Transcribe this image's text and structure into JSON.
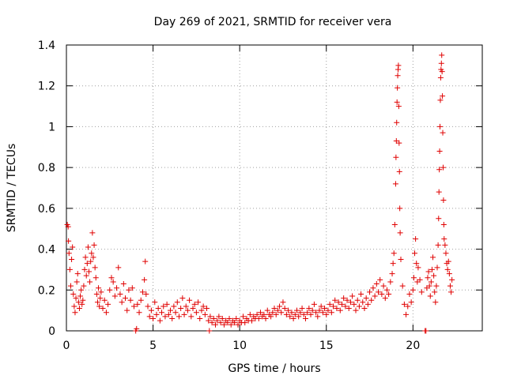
{
  "chart_data": {
    "type": "scatter",
    "title": "Day 269 of 2021, SRMTID for receiver vera",
    "xlabel": "GPS time / hours",
    "ylabel": "SRMTID / TECUs",
    "xlim": [
      0,
      24
    ],
    "ylim": [
      0,
      1.4
    ],
    "xticks": [
      0,
      5,
      10,
      15,
      20
    ],
    "xtick_labels": [
      "0",
      "5",
      "10",
      "15",
      "20"
    ],
    "yticks": [
      0,
      0.2,
      0.4,
      0.6,
      0.8,
      1.0,
      1.2,
      1.4
    ],
    "ytick_labels": [
      "0",
      "0.2",
      "0.4",
      "0.6",
      "0.8",
      "1",
      "1.2",
      "1.4"
    ],
    "grid": true,
    "marker": "+",
    "color": "#e00000",
    "series": [
      {
        "name": "SRMTID",
        "points": [
          [
            0.05,
            0.52
          ],
          [
            0.1,
            0.51
          ],
          [
            0.12,
            0.44
          ],
          [
            0.15,
            0.38
          ],
          [
            0.2,
            0.3
          ],
          [
            0.25,
            0.22
          ],
          [
            0.3,
            0.35
          ],
          [
            0.35,
            0.41
          ],
          [
            0.4,
            0.18
          ],
          [
            0.45,
            0.12
          ],
          [
            0.5,
            0.09
          ],
          [
            0.55,
            0.16
          ],
          [
            0.6,
            0.24
          ],
          [
            0.65,
            0.28
          ],
          [
            0.7,
            0.14
          ],
          [
            0.75,
            0.11
          ],
          [
            0.8,
            0.17
          ],
          [
            0.85,
            0.2
          ],
          [
            0.9,
            0.13
          ],
          [
            0.95,
            0.15
          ],
          [
            1.0,
            0.22
          ],
          [
            1.05,
            0.3
          ],
          [
            1.1,
            0.36
          ],
          [
            1.15,
            0.27
          ],
          [
            1.2,
            0.33
          ],
          [
            1.25,
            0.41
          ],
          [
            1.3,
            0.29
          ],
          [
            1.35,
            0.24
          ],
          [
            1.4,
            0.34
          ],
          [
            1.45,
            0.38
          ],
          [
            1.5,
            0.48
          ],
          [
            1.55,
            0.36
          ],
          [
            1.6,
            0.42
          ],
          [
            1.65,
            0.31
          ],
          [
            1.7,
            0.26
          ],
          [
            1.75,
            0.18
          ],
          [
            1.8,
            0.14
          ],
          [
            1.85,
            0.21
          ],
          [
            1.9,
            0.12
          ],
          [
            1.95,
            0.16
          ],
          [
            2.0,
            0.19
          ],
          [
            2.1,
            0.11
          ],
          [
            2.2,
            0.15
          ],
          [
            2.3,
            0.09
          ],
          [
            2.4,
            0.13
          ],
          [
            2.5,
            0.2
          ],
          [
            2.6,
            0.26
          ],
          [
            2.7,
            0.24
          ],
          [
            2.8,
            0.17
          ],
          [
            2.9,
            0.21
          ],
          [
            3.0,
            0.31
          ],
          [
            3.1,
            0.18
          ],
          [
            3.2,
            0.14
          ],
          [
            3.3,
            0.23
          ],
          [
            3.4,
            0.16
          ],
          [
            3.5,
            0.1
          ],
          [
            3.6,
            0.2
          ],
          [
            3.7,
            0.15
          ],
          [
            3.8,
            0.21
          ],
          [
            3.9,
            0.12
          ],
          [
            4.0,
            0.0
          ],
          [
            4.05,
            0.01
          ],
          [
            4.1,
            0.13
          ],
          [
            4.2,
            0.09
          ],
          [
            4.3,
            0.15
          ],
          [
            4.4,
            0.19
          ],
          [
            4.5,
            0.25
          ],
          [
            4.55,
            0.34
          ],
          [
            4.6,
            0.18
          ],
          [
            4.7,
            0.12
          ],
          [
            4.8,
            0.07
          ],
          [
            4.9,
            0.1
          ],
          [
            5.0,
            0.06
          ],
          [
            5.1,
            0.14
          ],
          [
            5.2,
            0.08
          ],
          [
            5.3,
            0.11
          ],
          [
            5.4,
            0.05
          ],
          [
            5.5,
            0.09
          ],
          [
            5.6,
            0.12
          ],
          [
            5.7,
            0.07
          ],
          [
            5.8,
            0.13
          ],
          [
            5.9,
            0.08
          ],
          [
            6.0,
            0.1
          ],
          [
            6.1,
            0.06
          ],
          [
            6.2,
            0.12
          ],
          [
            6.3,
            0.09
          ],
          [
            6.4,
            0.14
          ],
          [
            6.5,
            0.07
          ],
          [
            6.6,
            0.11
          ],
          [
            6.7,
            0.16
          ],
          [
            6.8,
            0.08
          ],
          [
            6.9,
            0.12
          ],
          [
            7.0,
            0.1
          ],
          [
            7.1,
            0.15
          ],
          [
            7.2,
            0.07
          ],
          [
            7.3,
            0.11
          ],
          [
            7.4,
            0.13
          ],
          [
            7.5,
            0.09
          ],
          [
            7.6,
            0.14
          ],
          [
            7.7,
            0.06
          ],
          [
            7.8,
            0.1
          ],
          [
            7.9,
            0.12
          ],
          [
            8.0,
            0.08
          ],
          [
            8.1,
            0.11
          ],
          [
            8.2,
            0.05
          ],
          [
            8.25,
            0.0
          ],
          [
            8.3,
            0.07
          ],
          [
            8.4,
            0.04
          ],
          [
            8.5,
            0.06
          ],
          [
            8.6,
            0.03
          ],
          [
            8.7,
            0.05
          ],
          [
            8.8,
            0.07
          ],
          [
            8.9,
            0.04
          ],
          [
            9.0,
            0.06
          ],
          [
            9.1,
            0.03
          ],
          [
            9.2,
            0.05
          ],
          [
            9.3,
            0.04
          ],
          [
            9.4,
            0.06
          ],
          [
            9.5,
            0.03
          ],
          [
            9.6,
            0.05
          ],
          [
            9.7,
            0.04
          ],
          [
            9.8,
            0.06
          ],
          [
            9.9,
            0.03
          ],
          [
            10.0,
            0.05
          ],
          [
            10.1,
            0.04
          ],
          [
            10.2,
            0.07
          ],
          [
            10.3,
            0.04
          ],
          [
            10.4,
            0.06
          ],
          [
            10.5,
            0.05
          ],
          [
            10.6,
            0.08
          ],
          [
            10.7,
            0.05
          ],
          [
            10.8,
            0.07
          ],
          [
            10.9,
            0.06
          ],
          [
            11.0,
            0.08
          ],
          [
            11.1,
            0.06
          ],
          [
            11.2,
            0.09
          ],
          [
            11.3,
            0.07
          ],
          [
            11.4,
            0.08
          ],
          [
            11.5,
            0.06
          ],
          [
            11.6,
            0.1
          ],
          [
            11.7,
            0.08
          ],
          [
            11.8,
            0.07
          ],
          [
            11.9,
            0.09
          ],
          [
            12.0,
            0.11
          ],
          [
            12.1,
            0.08
          ],
          [
            12.2,
            0.1
          ],
          [
            12.3,
            0.12
          ],
          [
            12.4,
            0.09
          ],
          [
            12.5,
            0.14
          ],
          [
            12.6,
            0.11
          ],
          [
            12.7,
            0.08
          ],
          [
            12.8,
            0.1
          ],
          [
            12.9,
            0.07
          ],
          [
            13.0,
            0.09
          ],
          [
            13.1,
            0.06
          ],
          [
            13.2,
            0.08
          ],
          [
            13.3,
            0.1
          ],
          [
            13.4,
            0.07
          ],
          [
            13.5,
            0.09
          ],
          [
            13.6,
            0.11
          ],
          [
            13.7,
            0.08
          ],
          [
            13.8,
            0.06
          ],
          [
            13.9,
            0.09
          ],
          [
            14.0,
            0.11
          ],
          [
            14.1,
            0.08
          ],
          [
            14.2,
            0.1
          ],
          [
            14.3,
            0.13
          ],
          [
            14.4,
            0.09
          ],
          [
            14.5,
            0.07
          ],
          [
            14.6,
            0.1
          ],
          [
            14.7,
            0.12
          ],
          [
            14.8,
            0.09
          ],
          [
            14.9,
            0.11
          ],
          [
            15.0,
            0.08
          ],
          [
            15.1,
            0.1
          ],
          [
            15.2,
            0.13
          ],
          [
            15.3,
            0.09
          ],
          [
            15.4,
            0.12
          ],
          [
            15.5,
            0.15
          ],
          [
            15.6,
            0.11
          ],
          [
            15.7,
            0.14
          ],
          [
            15.8,
            0.1
          ],
          [
            15.9,
            0.13
          ],
          [
            16.0,
            0.16
          ],
          [
            16.1,
            0.12
          ],
          [
            16.2,
            0.15
          ],
          [
            16.3,
            0.11
          ],
          [
            16.4,
            0.14
          ],
          [
            16.5,
            0.17
          ],
          [
            16.6,
            0.13
          ],
          [
            16.7,
            0.1
          ],
          [
            16.8,
            0.15
          ],
          [
            16.9,
            0.12
          ],
          [
            17.0,
            0.18
          ],
          [
            17.1,
            0.14
          ],
          [
            17.2,
            0.11
          ],
          [
            17.3,
            0.16
          ],
          [
            17.4,
            0.13
          ],
          [
            17.5,
            0.19
          ],
          [
            17.6,
            0.15
          ],
          [
            17.7,
            0.21
          ],
          [
            17.8,
            0.17
          ],
          [
            17.9,
            0.23
          ],
          [
            18.0,
            0.19
          ],
          [
            18.1,
            0.25
          ],
          [
            18.2,
            0.18
          ],
          [
            18.3,
            0.22
          ],
          [
            18.4,
            0.16
          ],
          [
            18.5,
            0.2
          ],
          [
            18.6,
            0.18
          ],
          [
            18.7,
            0.24
          ],
          [
            18.8,
            0.28
          ],
          [
            18.85,
            0.33
          ],
          [
            18.9,
            0.38
          ],
          [
            18.95,
            0.52
          ],
          [
            19.0,
            0.72
          ],
          [
            19.02,
            0.85
          ],
          [
            19.04,
            0.93
          ],
          [
            19.06,
            1.02
          ],
          [
            19.08,
            1.12
          ],
          [
            19.1,
            1.19
          ],
          [
            19.12,
            1.25
          ],
          [
            19.14,
            1.28
          ],
          [
            19.16,
            1.3
          ],
          [
            19.18,
            1.1
          ],
          [
            19.2,
            0.92
          ],
          [
            19.22,
            0.78
          ],
          [
            19.24,
            0.6
          ],
          [
            19.26,
            0.48
          ],
          [
            19.3,
            0.35
          ],
          [
            19.4,
            0.22
          ],
          [
            19.5,
            0.13
          ],
          [
            19.6,
            0.08
          ],
          [
            19.7,
            0.12
          ],
          [
            19.8,
            0.18
          ],
          [
            19.9,
            0.14
          ],
          [
            20.0,
            0.2
          ],
          [
            20.05,
            0.26
          ],
          [
            20.1,
            0.38
          ],
          [
            20.15,
            0.45
          ],
          [
            20.2,
            0.33
          ],
          [
            20.25,
            0.24
          ],
          [
            20.3,
            0.31
          ],
          [
            20.4,
            0.25
          ],
          [
            20.5,
            0.19
          ],
          [
            20.7,
            0.0
          ],
          [
            20.75,
            0.0
          ],
          [
            20.8,
            0.21
          ],
          [
            20.85,
            0.26
          ],
          [
            20.9,
            0.29
          ],
          [
            20.95,
            0.22
          ],
          [
            21.0,
            0.17
          ],
          [
            21.05,
            0.24
          ],
          [
            21.1,
            0.3
          ],
          [
            21.15,
            0.36
          ],
          [
            21.2,
            0.27
          ],
          [
            21.25,
            0.19
          ],
          [
            21.3,
            0.14
          ],
          [
            21.35,
            0.22
          ],
          [
            21.4,
            0.31
          ],
          [
            21.45,
            0.42
          ],
          [
            21.48,
            0.55
          ],
          [
            21.5,
            0.68
          ],
          [
            21.52,
            0.79
          ],
          [
            21.54,
            0.88
          ],
          [
            21.56,
            1.0
          ],
          [
            21.58,
            1.13
          ],
          [
            21.6,
            1.24
          ],
          [
            21.62,
            1.28
          ],
          [
            21.64,
            1.31
          ],
          [
            21.66,
            1.35
          ],
          [
            21.68,
            1.27
          ],
          [
            21.7,
            1.15
          ],
          [
            21.72,
            0.97
          ],
          [
            21.74,
            0.8
          ],
          [
            21.76,
            0.64
          ],
          [
            21.78,
            0.52
          ],
          [
            21.8,
            0.45
          ],
          [
            21.85,
            0.42
          ],
          [
            21.9,
            0.38
          ],
          [
            21.95,
            0.33
          ],
          [
            22.0,
            0.3
          ],
          [
            22.05,
            0.34
          ],
          [
            22.1,
            0.28
          ],
          [
            22.15,
            0.22
          ],
          [
            22.2,
            0.19
          ],
          [
            22.25,
            0.25
          ]
        ]
      }
    ]
  }
}
